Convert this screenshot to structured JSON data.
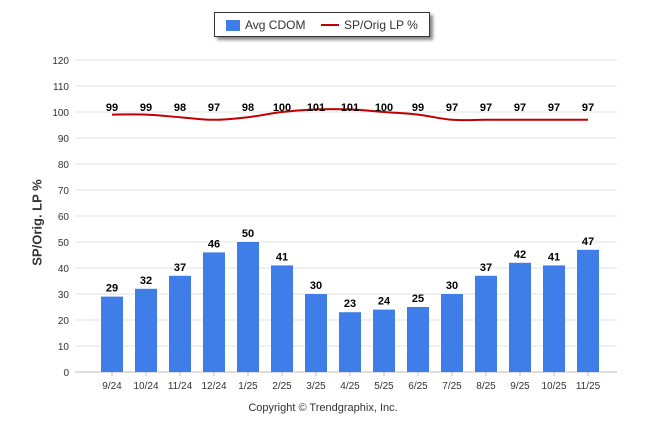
{
  "chart_data": {
    "type": "bar+line",
    "title": "",
    "categories": [
      "9/24",
      "10/24",
      "11/24",
      "12/24",
      "1/25",
      "2/25",
      "3/25",
      "4/25",
      "5/25",
      "6/25",
      "7/25",
      "8/25",
      "9/25",
      "10/25",
      "11/25"
    ],
    "series": [
      {
        "name": "Avg CDOM",
        "type": "bar",
        "color": "#3f7ee8",
        "values": [
          29,
          32,
          37,
          46,
          50,
          41,
          30,
          23,
          24,
          25,
          30,
          37,
          42,
          41,
          47
        ]
      },
      {
        "name": "SP/Orig LP %",
        "type": "line",
        "color": "#c00000",
        "values": [
          99,
          99,
          98,
          97,
          98,
          100,
          101,
          101,
          100,
          99,
          97,
          97,
          97,
          97,
          97
        ]
      }
    ],
    "ylabel": "SP/Orig. LP %",
    "xlabel": "",
    "ylim": [
      0,
      120
    ],
    "yticks": [
      0,
      10,
      20,
      30,
      40,
      50,
      60,
      70,
      80,
      90,
      100,
      110,
      120
    ],
    "grid": true,
    "legend": "top-center"
  },
  "legend": {
    "bar_label": "Avg CDOM",
    "line_label": "SP/Orig LP %"
  },
  "footer": {
    "copyright": "Copyright © Trendgraphix, Inc."
  }
}
